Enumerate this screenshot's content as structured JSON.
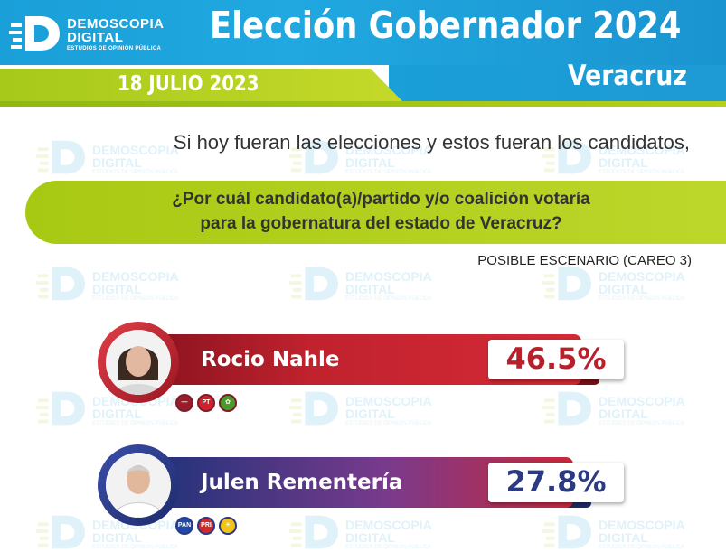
{
  "header": {
    "logo_line1": "DEMOSCOPIA",
    "logo_line2": "DIGITAL",
    "logo_line3": "ESTUDIOS DE OPINIÓN PÚBLICA",
    "title": "Elección Gobernador 2024",
    "subtitle": "Veracruz",
    "date": "18 JULIO 2023"
  },
  "watermark": {
    "line1": "DEMOSCOPIA",
    "line2": "DIGITAL",
    "line3": "ESTUDIOS DE OPINIÓN PÚBLICA"
  },
  "question": {
    "intro": "Si hoy fueran las elecciones y estos fueran los candidatos,",
    "line1": "¿Por cuál candidato(a)/partido y/o coalición votaría",
    "line2": "para la gobernatura del estado de Veracruz?",
    "scenario": "POSIBLE ESCENARIO (CAREO 3)"
  },
  "colors": {
    "brand_blue": "#1a9fd9",
    "brand_green": "#a8c914",
    "morena_red": "#c0222e",
    "opposition_navy": "#2b3a82"
  },
  "chart_data": {
    "type": "bar",
    "categories": [
      "Rocio Nahle",
      "Julen Rementería"
    ],
    "values": [
      46.5,
      27.8
    ],
    "labels": [
      "46.5%",
      "27.8%"
    ],
    "unit": "%",
    "coalitions": [
      [
        "morena-icon",
        "pt-icon",
        "pvem-icon"
      ],
      [
        "pan-icon",
        "pri-icon",
        "prd-icon"
      ]
    ]
  }
}
